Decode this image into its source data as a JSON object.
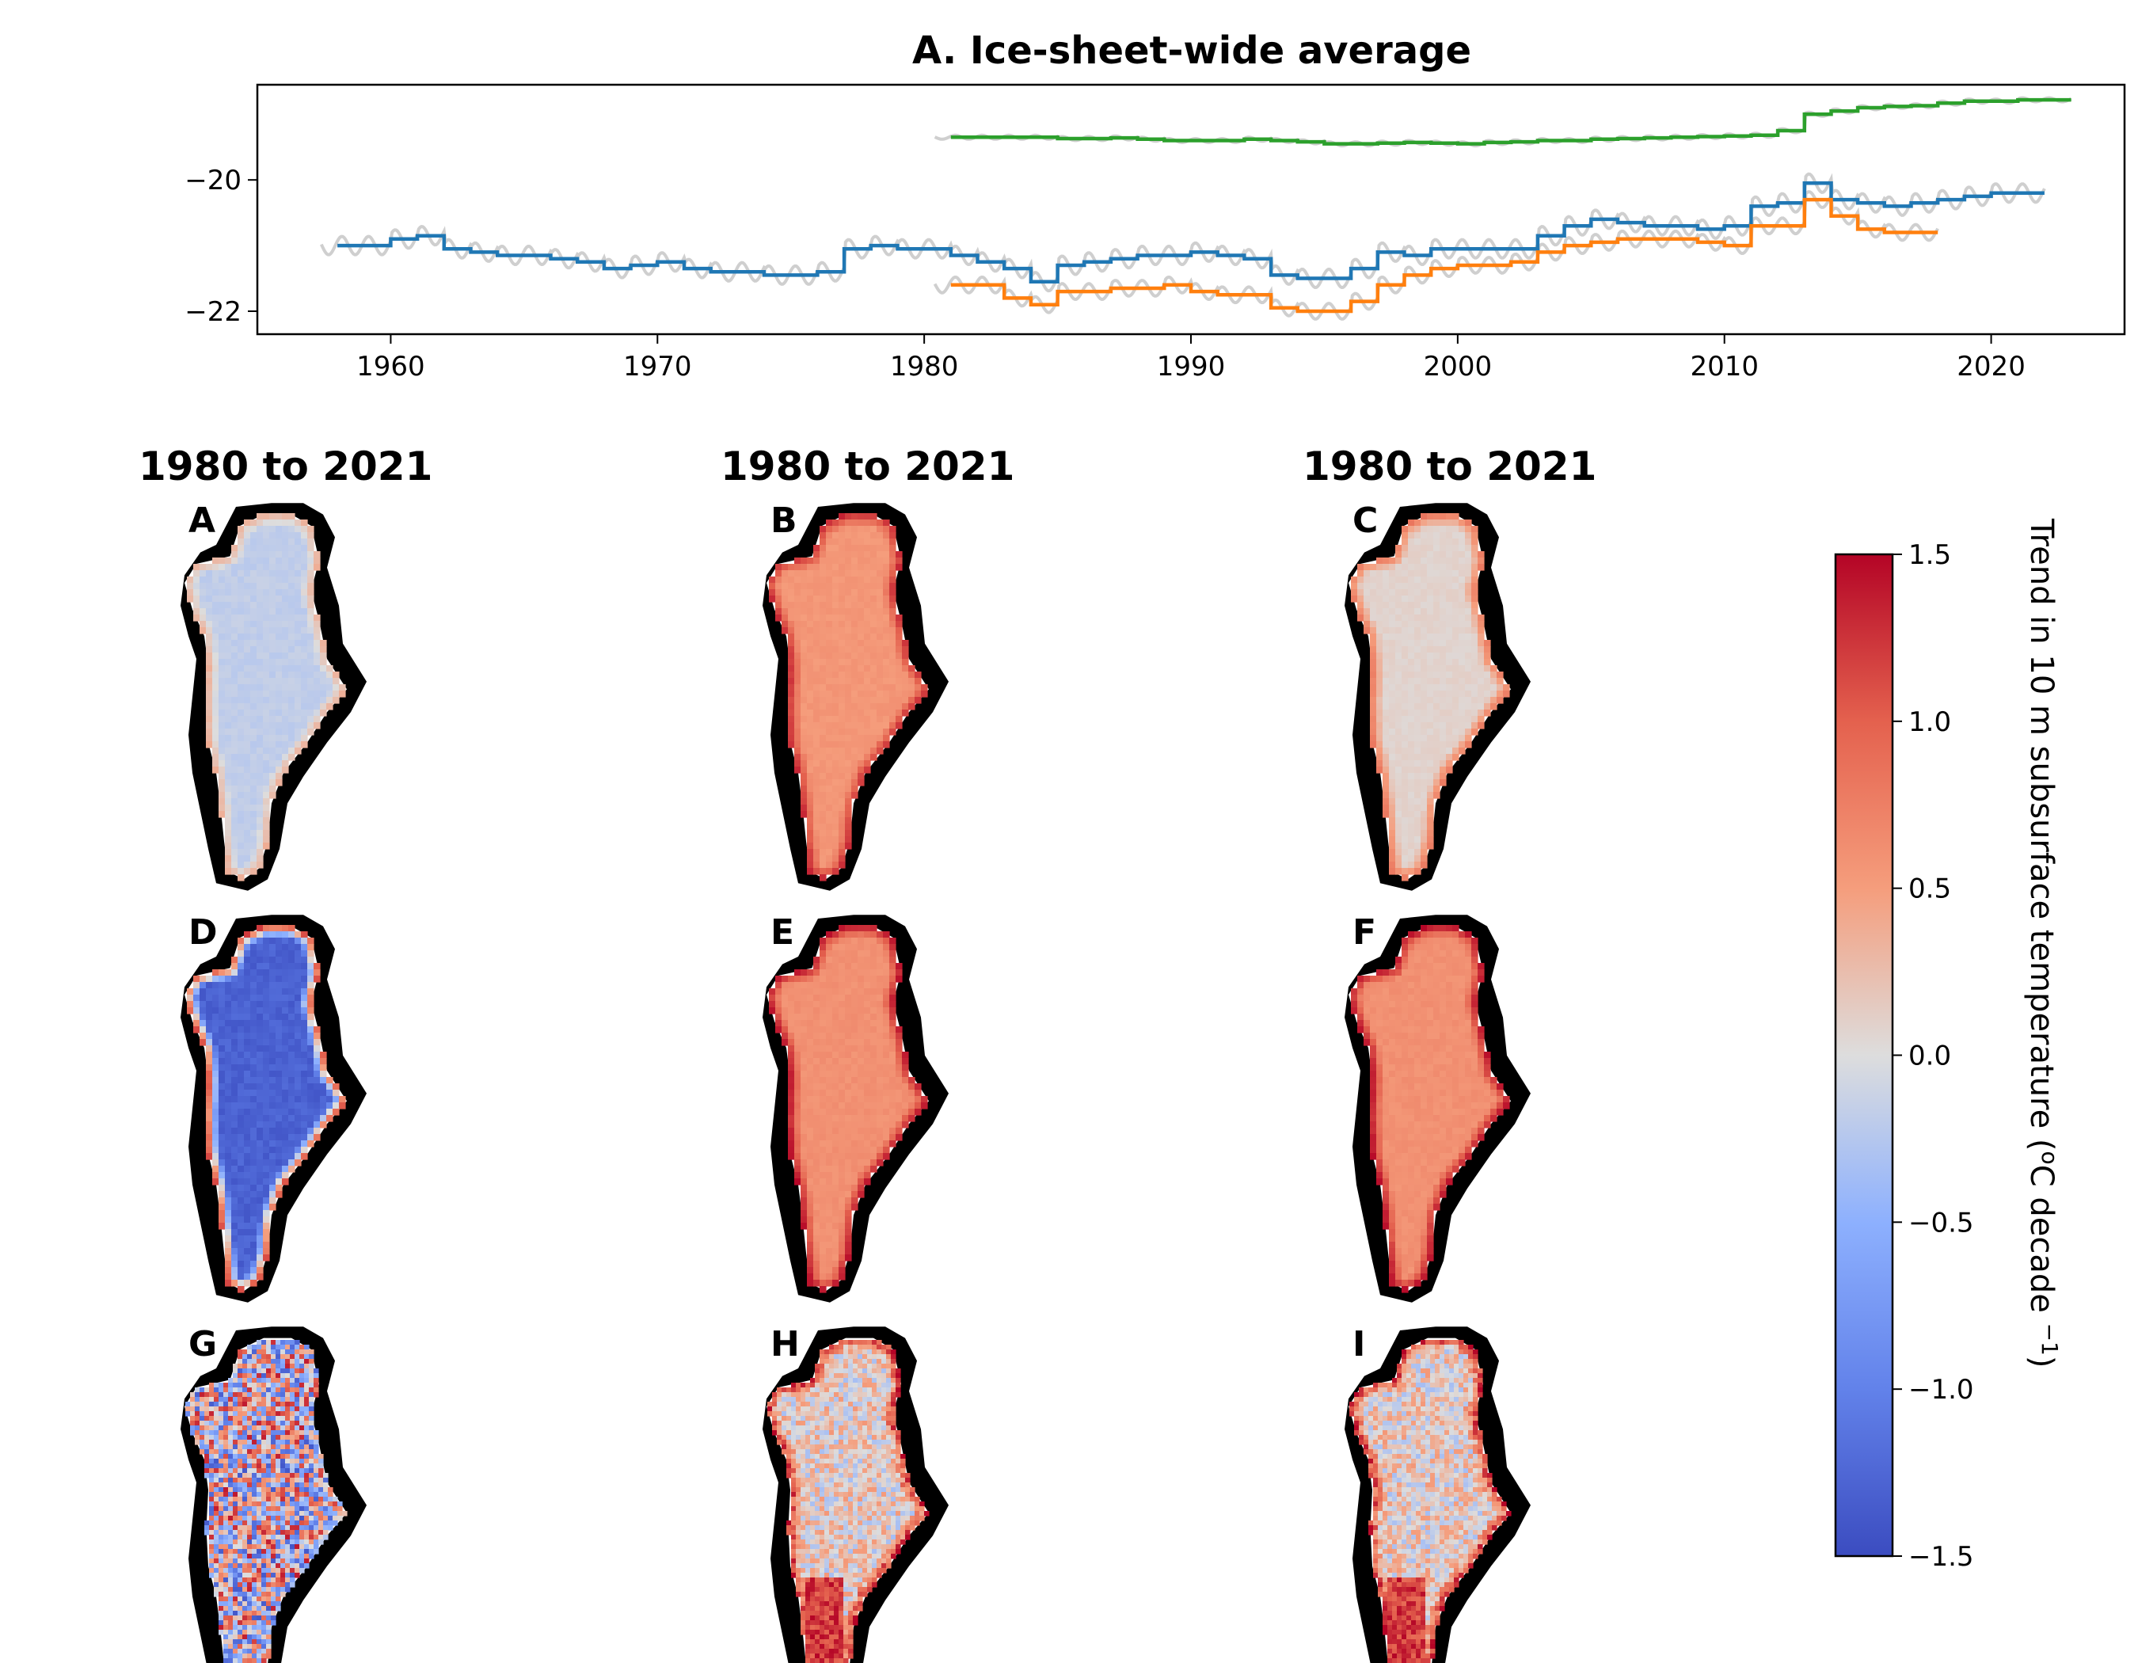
{
  "chart_data": [
    {
      "type": "line",
      "title": "A. Ice-sheet-wide average",
      "xlabel": "",
      "ylabel": "",
      "xlim": [
        1955,
        2025
      ],
      "ylim": [
        -22.35,
        -18.55
      ],
      "xticks": [
        1960,
        1970,
        1980,
        1990,
        2000,
        2010,
        2020
      ],
      "yticks": [
        -22,
        -20
      ],
      "xtick_labels": [
        "1960",
        "1970",
        "1980",
        "1990",
        "2000",
        "2010",
        "2020"
      ],
      "ytick_labels": [
        "−22",
        "−20"
      ],
      "grid": false,
      "series": [
        {
          "color": "#1f77b4",
          "step": true,
          "x": [
            1958,
            1959,
            1960,
            1961,
            1962,
            1963,
            1964,
            1965,
            1966,
            1967,
            1968,
            1969,
            1970,
            1971,
            1972,
            1973,
            1974,
            1975,
            1976,
            1977,
            1978,
            1979,
            1980,
            1981,
            1982,
            1983,
            1984,
            1985,
            1986,
            1987,
            1988,
            1989,
            1990,
            1991,
            1992,
            1993,
            1994,
            1995,
            1996,
            1997,
            1998,
            1999,
            2000,
            2001,
            2002,
            2003,
            2004,
            2005,
            2006,
            2007,
            2008,
            2009,
            2010,
            2011,
            2012,
            2013,
            2014,
            2015,
            2016,
            2017,
            2018,
            2019,
            2020,
            2021
          ],
          "values": [
            -21.0,
            -21.0,
            -20.9,
            -20.85,
            -21.05,
            -21.1,
            -21.15,
            -21.15,
            -21.2,
            -21.25,
            -21.35,
            -21.3,
            -21.25,
            -21.35,
            -21.4,
            -21.4,
            -21.45,
            -21.45,
            -21.4,
            -21.05,
            -21.0,
            -21.05,
            -21.05,
            -21.15,
            -21.25,
            -21.35,
            -21.55,
            -21.3,
            -21.25,
            -21.2,
            -21.15,
            -21.15,
            -21.1,
            -21.15,
            -21.2,
            -21.45,
            -21.5,
            -21.5,
            -21.35,
            -21.1,
            -21.15,
            -21.05,
            -21.05,
            -21.05,
            -21.05,
            -20.85,
            -20.7,
            -20.6,
            -20.65,
            -20.7,
            -20.7,
            -20.75,
            -20.7,
            -20.4,
            -20.35,
            -20.05,
            -20.3,
            -20.35,
            -20.4,
            -20.35,
            -20.3,
            -20.25,
            -20.2,
            -20.2
          ]
        },
        {
          "color": "#ff7f0e",
          "step": true,
          "x": [
            1981,
            1982,
            1983,
            1984,
            1985,
            1986,
            1987,
            1988,
            1989,
            1990,
            1991,
            1992,
            1993,
            1994,
            1995,
            1996,
            1997,
            1998,
            1999,
            2000,
            2001,
            2002,
            2003,
            2004,
            2005,
            2006,
            2007,
            2008,
            2009,
            2010,
            2011,
            2012,
            2013,
            2014,
            2015,
            2016,
            2017
          ],
          "values": [
            -21.6,
            -21.6,
            -21.8,
            -21.9,
            -21.7,
            -21.7,
            -21.65,
            -21.65,
            -21.6,
            -21.7,
            -21.75,
            -21.75,
            -21.95,
            -22.0,
            -22.0,
            -21.85,
            -21.6,
            -21.45,
            -21.35,
            -21.3,
            -21.3,
            -21.25,
            -21.1,
            -21.0,
            -20.95,
            -20.9,
            -20.9,
            -20.9,
            -20.95,
            -21.0,
            -20.7,
            -20.7,
            -20.3,
            -20.55,
            -20.75,
            -20.8,
            -20.8
          ]
        },
        {
          "color": "#2ca02c",
          "step": true,
          "x": [
            1981,
            1982,
            1983,
            1984,
            1985,
            1986,
            1987,
            1988,
            1989,
            1990,
            1991,
            1992,
            1993,
            1994,
            1995,
            1996,
            1997,
            1998,
            1999,
            2000,
            2001,
            2002,
            2003,
            2004,
            2005,
            2006,
            2007,
            2008,
            2009,
            2010,
            2011,
            2012,
            2013,
            2014,
            2015,
            2016,
            2017,
            2018,
            2019,
            2020,
            2021,
            2022
          ],
          "values": [
            -19.35,
            -19.35,
            -19.35,
            -19.35,
            -19.37,
            -19.37,
            -19.36,
            -19.38,
            -19.4,
            -19.4,
            -19.4,
            -19.38,
            -19.4,
            -19.42,
            -19.45,
            -19.45,
            -19.44,
            -19.43,
            -19.44,
            -19.45,
            -19.43,
            -19.42,
            -19.4,
            -19.4,
            -19.38,
            -19.37,
            -19.36,
            -19.35,
            -19.34,
            -19.33,
            -19.32,
            -19.25,
            -19.0,
            -18.95,
            -18.9,
            -18.88,
            -18.87,
            -18.83,
            -18.8,
            -18.8,
            -18.78,
            -18.78
          ]
        }
      ]
    },
    {
      "type": "heatmap",
      "column_titles": [
        "1980 to 2021",
        "1980 to 2021",
        "1980 to 2021"
      ],
      "panels": [
        {
          "label": "A",
          "pattern": "smooth",
          "interior": -0.18,
          "edge": 0.35,
          "noise": 0.05
        },
        {
          "label": "B",
          "pattern": "smooth",
          "interior": 0.55,
          "edge": 1.3,
          "noise": 0.05
        },
        {
          "label": "C",
          "pattern": "smooth",
          "interior": 0.08,
          "edge": 0.8,
          "noise": 0.04
        },
        {
          "label": "D",
          "pattern": "smooth",
          "interior": -1.3,
          "edge": 1.2,
          "noise": 0.1
        },
        {
          "label": "E",
          "pattern": "smooth",
          "interior": 0.6,
          "edge": 1.45,
          "noise": 0.05
        },
        {
          "label": "F",
          "pattern": "smooth",
          "interior": 0.6,
          "edge": 1.45,
          "noise": 0.05
        },
        {
          "label": "G",
          "pattern": "noisy",
          "interior": 0.0,
          "edge": 0.0,
          "noise": 1.4
        },
        {
          "label": "H",
          "pattern": "noisy",
          "interior": 0.1,
          "edge": 1.3,
          "noise": 0.45
        },
        {
          "label": "I",
          "pattern": "noisy",
          "interior": 0.1,
          "edge": 1.3,
          "noise": 0.45
        }
      ],
      "colorbar": {
        "label": "Trend in 10 m subsurface temperature (°C decade ⁻¹)",
        "label_main": "Trend in 10 m subsurface temperature (",
        "label_o": "o",
        "label_mid": "C decade ",
        "label_exp": "−1",
        "label_end": ")",
        "range": [
          -1.5,
          1.5
        ],
        "ticks": [
          1.5,
          1.0,
          0.5,
          0.0,
          -0.5,
          -1.0,
          -1.5
        ],
        "tick_labels": [
          "1.5",
          "1.0",
          "0.5",
          "0.0",
          "−0.5",
          "−1.0",
          "−1.5"
        ],
        "colormap": "coolwarm"
      }
    }
  ]
}
